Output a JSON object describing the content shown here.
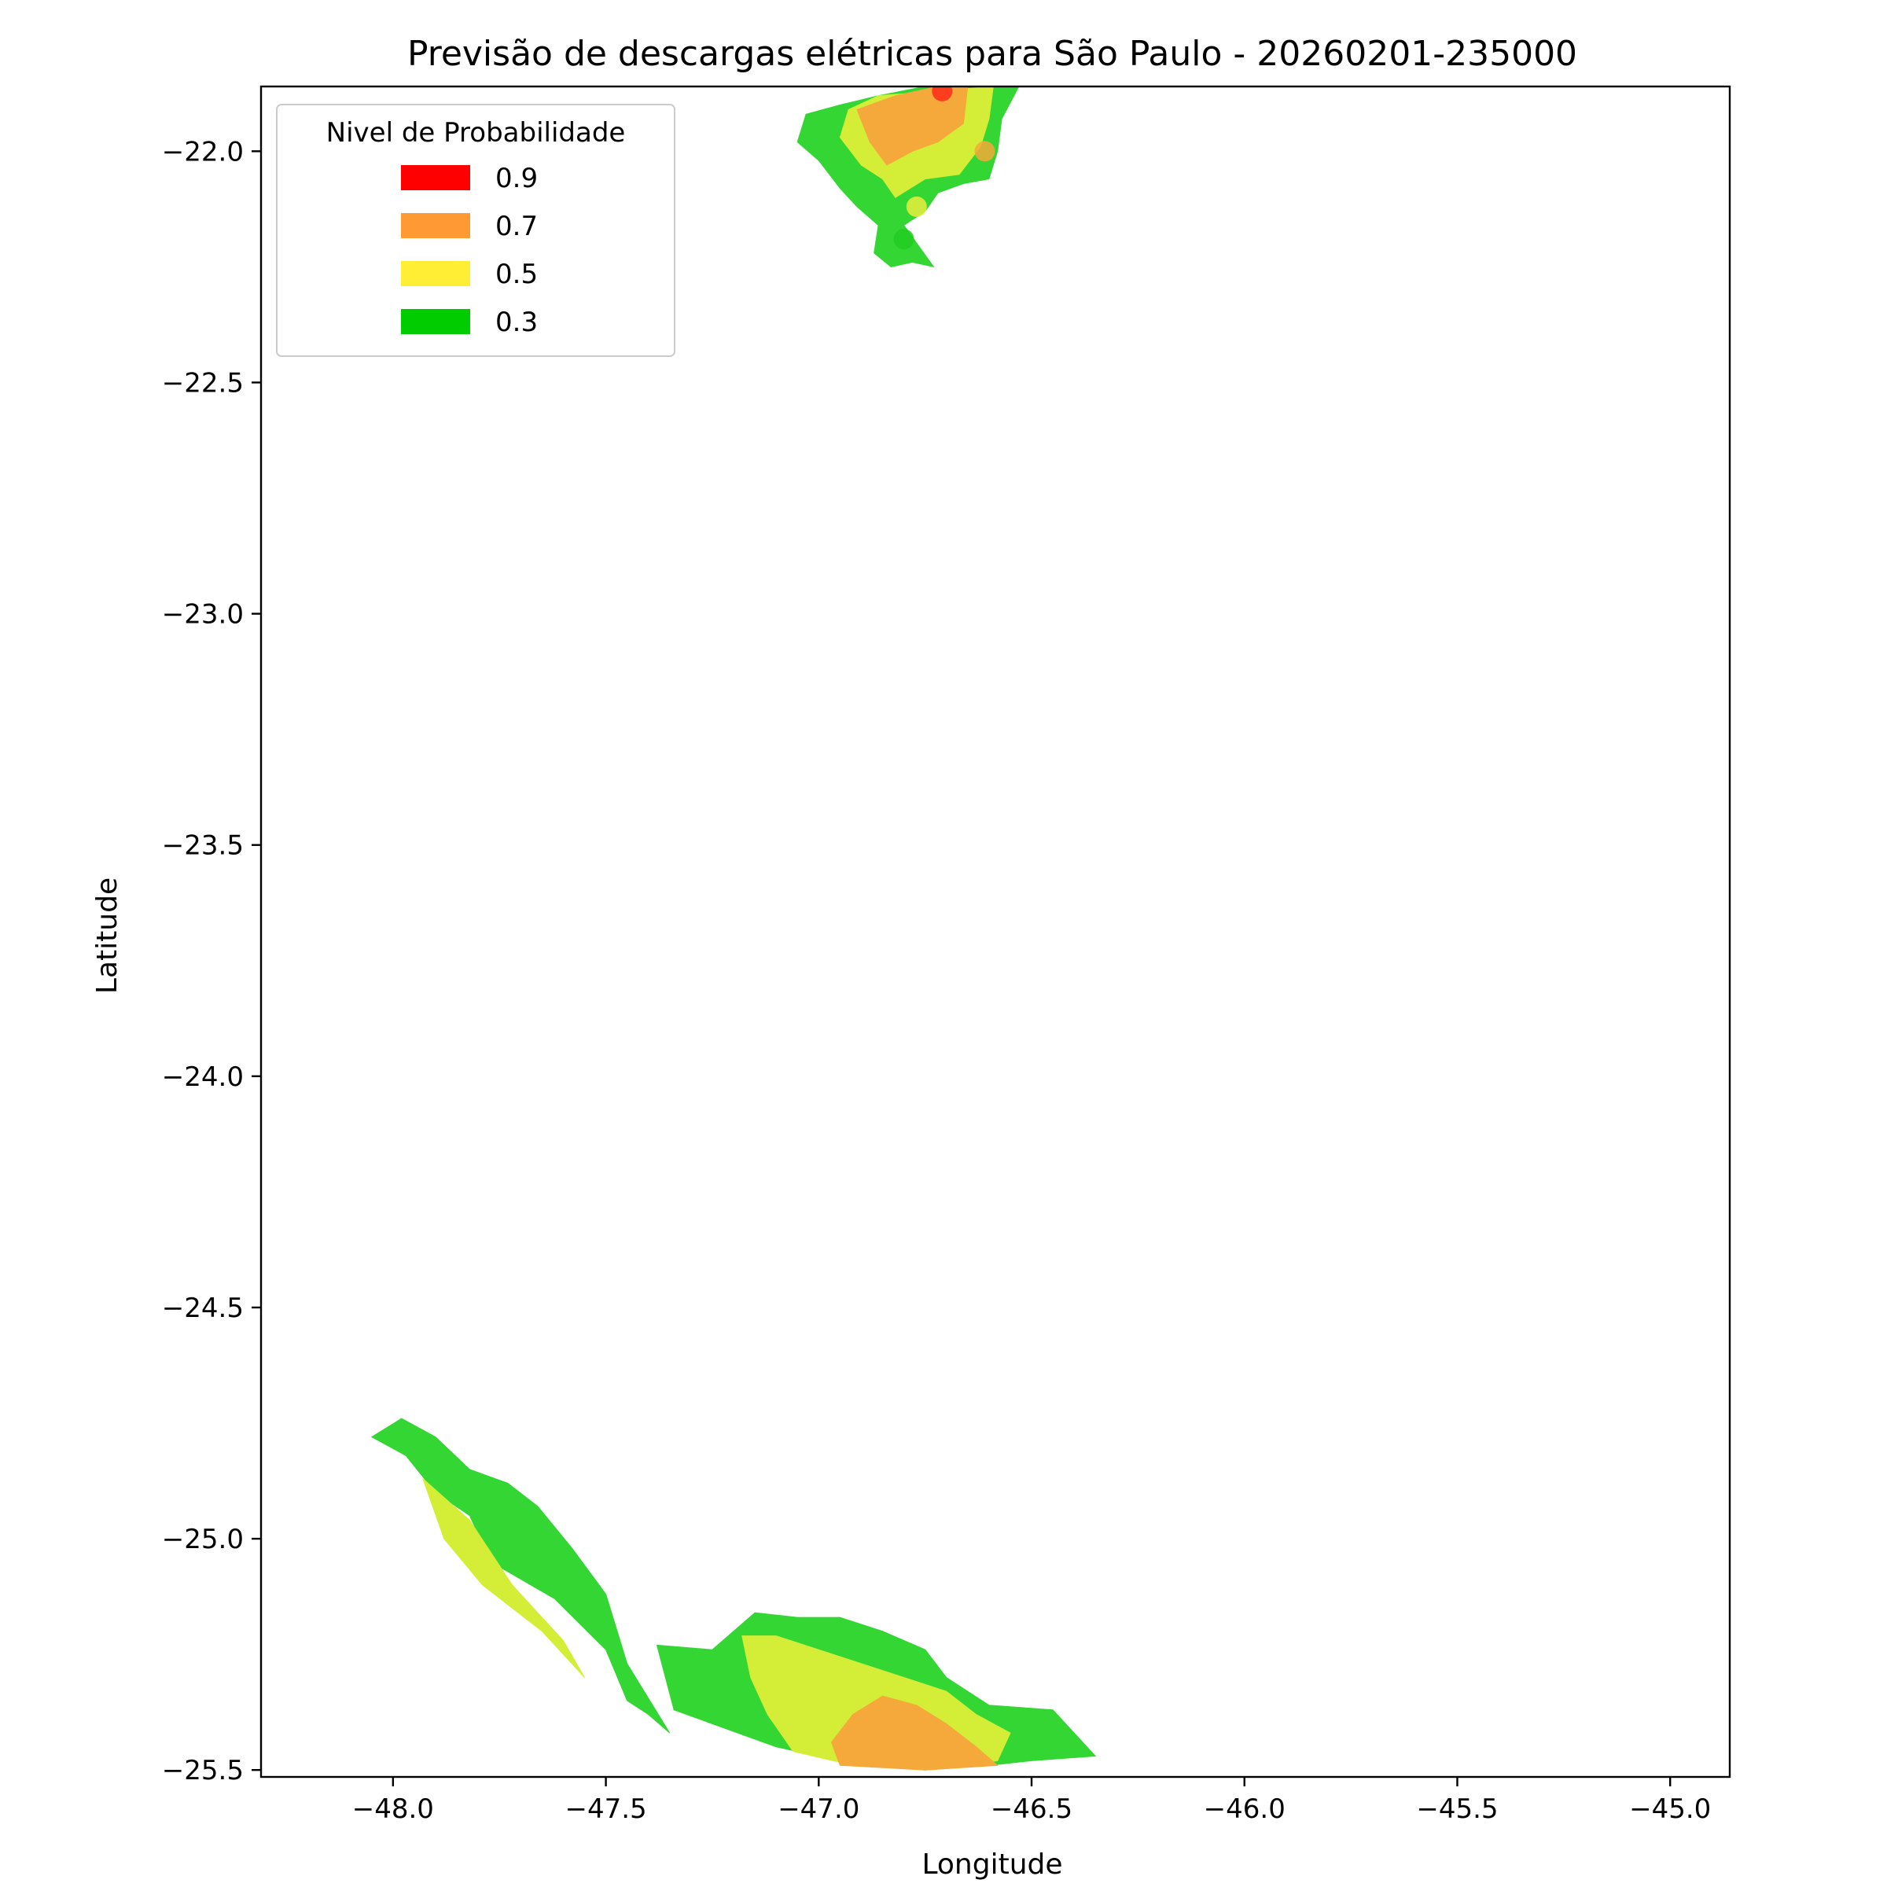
{
  "chart_data": {
    "type": "contour-map",
    "title": "Previsão de descargas elétricas para São Paulo - 20260201-235000",
    "xlabel": "Longitude",
    "ylabel": "Latitude",
    "xlim": [
      -48.31,
      -44.86
    ],
    "ylim": [
      -25.515,
      -21.86
    ],
    "xticks": [
      {
        "value": -48.0,
        "label": "−48.0"
      },
      {
        "value": -47.5,
        "label": "−47.5"
      },
      {
        "value": -47.0,
        "label": "−47.0"
      },
      {
        "value": -46.5,
        "label": "−46.5"
      },
      {
        "value": -46.0,
        "label": "−46.0"
      },
      {
        "value": -45.5,
        "label": "−45.5"
      },
      {
        "value": -45.0,
        "label": "−45.0"
      }
    ],
    "yticks": [
      {
        "value": -22.0,
        "label": "−22.0"
      },
      {
        "value": -22.5,
        "label": "−22.5"
      },
      {
        "value": -23.0,
        "label": "−23.0"
      },
      {
        "value": -23.5,
        "label": "−23.5"
      },
      {
        "value": -24.0,
        "label": "−24.0"
      },
      {
        "value": -24.5,
        "label": "−24.5"
      },
      {
        "value": -25.0,
        "label": "−25.0"
      },
      {
        "value": -25.5,
        "label": "−25.5"
      }
    ],
    "grid": false,
    "legend": {
      "title": "Nivel de Probabilidade",
      "placement": "upper-left",
      "entries": [
        {
          "label": "0.9",
          "color": "#ff0000"
        },
        {
          "label": "0.7",
          "color": "#ff9933"
        },
        {
          "label": "0.5",
          "color": "#ffee33"
        },
        {
          "label": "0.3",
          "color": "#00cc00"
        }
      ]
    },
    "contour_regions": [
      {
        "level": 0.3,
        "color": "#33d633",
        "points": [
          [
            -46.56,
            -21.86
          ],
          [
            -46.53,
            -21.86
          ],
          [
            -46.57,
            -21.93
          ],
          [
            -46.58,
            -22.0
          ],
          [
            -46.6,
            -22.06
          ],
          [
            -46.66,
            -22.07
          ],
          [
            -46.72,
            -22.09
          ],
          [
            -46.75,
            -22.13
          ],
          [
            -46.8,
            -22.16
          ],
          [
            -46.73,
            -22.25
          ],
          [
            -46.78,
            -22.24
          ],
          [
            -46.83,
            -22.25
          ],
          [
            -46.87,
            -22.22
          ],
          [
            -46.86,
            -22.16
          ],
          [
            -46.91,
            -22.12
          ],
          [
            -46.95,
            -22.08
          ],
          [
            -47.0,
            -22.02
          ],
          [
            -47.05,
            -21.98
          ],
          [
            -47.03,
            -21.92
          ],
          [
            -46.95,
            -21.9
          ],
          [
            -46.86,
            -21.88
          ],
          [
            -46.75,
            -21.86
          ]
        ]
      },
      {
        "level": 0.5,
        "color": "#d4ee38",
        "points": [
          [
            -46.59,
            -21.86
          ],
          [
            -46.6,
            -21.93
          ],
          [
            -46.62,
            -21.99
          ],
          [
            -46.67,
            -22.05
          ],
          [
            -46.75,
            -22.06
          ],
          [
            -46.82,
            -22.1
          ],
          [
            -46.85,
            -22.06
          ],
          [
            -46.9,
            -22.03
          ],
          [
            -46.95,
            -21.97
          ],
          [
            -46.93,
            -21.91
          ],
          [
            -46.86,
            -21.88
          ]
        ]
      },
      {
        "level": 0.7,
        "color": "#f5a93a",
        "points": [
          [
            -46.65,
            -21.86
          ],
          [
            -46.66,
            -21.94
          ],
          [
            -46.72,
            -21.98
          ],
          [
            -46.78,
            -22.0
          ],
          [
            -46.84,
            -22.03
          ],
          [
            -46.88,
            -21.98
          ],
          [
            -46.91,
            -21.91
          ],
          [
            -46.82,
            -21.88
          ],
          [
            -46.72,
            -21.86
          ]
        ]
      },
      {
        "level": 0.3,
        "color": "#33d633",
        "points": [
          [
            -48.05,
            -24.78
          ],
          [
            -47.97,
            -24.82
          ],
          [
            -47.9,
            -24.9
          ],
          [
            -47.82,
            -24.95
          ],
          [
            -47.77,
            -25.05
          ],
          [
            -47.62,
            -25.13
          ],
          [
            -47.5,
            -25.24
          ],
          [
            -47.45,
            -25.35
          ],
          [
            -47.4,
            -25.38
          ],
          [
            -47.35,
            -25.42
          ],
          [
            -47.45,
            -25.27
          ],
          [
            -47.5,
            -25.12
          ],
          [
            -47.58,
            -25.02
          ],
          [
            -47.66,
            -24.93
          ],
          [
            -47.73,
            -24.88
          ],
          [
            -47.82,
            -24.85
          ],
          [
            -47.9,
            -24.78
          ],
          [
            -47.98,
            -24.74
          ]
        ]
      },
      {
        "level": 0.5,
        "color": "#d4ee38",
        "points": [
          [
            -47.93,
            -24.87
          ],
          [
            -47.88,
            -25.0
          ],
          [
            -47.79,
            -25.1
          ],
          [
            -47.65,
            -25.2
          ],
          [
            -47.55,
            -25.3
          ],
          [
            -47.6,
            -25.22
          ],
          [
            -47.72,
            -25.1
          ],
          [
            -47.82,
            -24.96
          ]
        ]
      },
      {
        "level": 0.3,
        "color": "#33d633",
        "points": [
          [
            -47.38,
            -25.23
          ],
          [
            -47.25,
            -25.24
          ],
          [
            -47.15,
            -25.16
          ],
          [
            -47.05,
            -25.17
          ],
          [
            -46.95,
            -25.17
          ],
          [
            -46.85,
            -25.2
          ],
          [
            -46.75,
            -25.24
          ],
          [
            -46.7,
            -25.3
          ],
          [
            -46.6,
            -25.36
          ],
          [
            -46.45,
            -25.37
          ],
          [
            -46.35,
            -25.47
          ],
          [
            -46.5,
            -25.48
          ],
          [
            -46.6,
            -25.49
          ],
          [
            -46.75,
            -25.5
          ],
          [
            -46.95,
            -25.48
          ],
          [
            -47.1,
            -25.45
          ],
          [
            -47.25,
            -25.4
          ],
          [
            -47.34,
            -25.37
          ]
        ]
      },
      {
        "level": 0.5,
        "color": "#d4ee38",
        "points": [
          [
            -47.18,
            -25.21
          ],
          [
            -47.1,
            -25.21
          ],
          [
            -47.0,
            -25.24
          ],
          [
            -46.9,
            -25.27
          ],
          [
            -46.8,
            -25.3
          ],
          [
            -46.7,
            -25.33
          ],
          [
            -46.63,
            -25.38
          ],
          [
            -46.55,
            -25.42
          ],
          [
            -46.58,
            -25.48
          ],
          [
            -46.75,
            -25.5
          ],
          [
            -46.92,
            -25.49
          ],
          [
            -47.06,
            -25.46
          ],
          [
            -47.12,
            -25.38
          ],
          [
            -47.16,
            -25.3
          ]
        ]
      },
      {
        "level": 0.7,
        "color": "#f5a93a",
        "points": [
          [
            -46.97,
            -25.44
          ],
          [
            -46.92,
            -25.38
          ],
          [
            -46.85,
            -25.34
          ],
          [
            -46.77,
            -25.36
          ],
          [
            -46.7,
            -25.4
          ],
          [
            -46.63,
            -25.45
          ],
          [
            -46.58,
            -25.49
          ],
          [
            -46.75,
            -25.5
          ],
          [
            -46.95,
            -25.49
          ]
        ]
      }
    ],
    "markers": [
      {
        "lon": -46.71,
        "lat": -21.87,
        "level": 0.9,
        "color": "#ff2a1a"
      },
      {
        "lon": -46.61,
        "lat": -22.0,
        "level": 0.7,
        "color": "#f5a93a"
      },
      {
        "lon": -46.77,
        "lat": -22.12,
        "level": 0.5,
        "color": "#e8ee40"
      },
      {
        "lon": -46.8,
        "lat": -22.19,
        "level": 0.3,
        "color": "#22cc22"
      }
    ]
  }
}
